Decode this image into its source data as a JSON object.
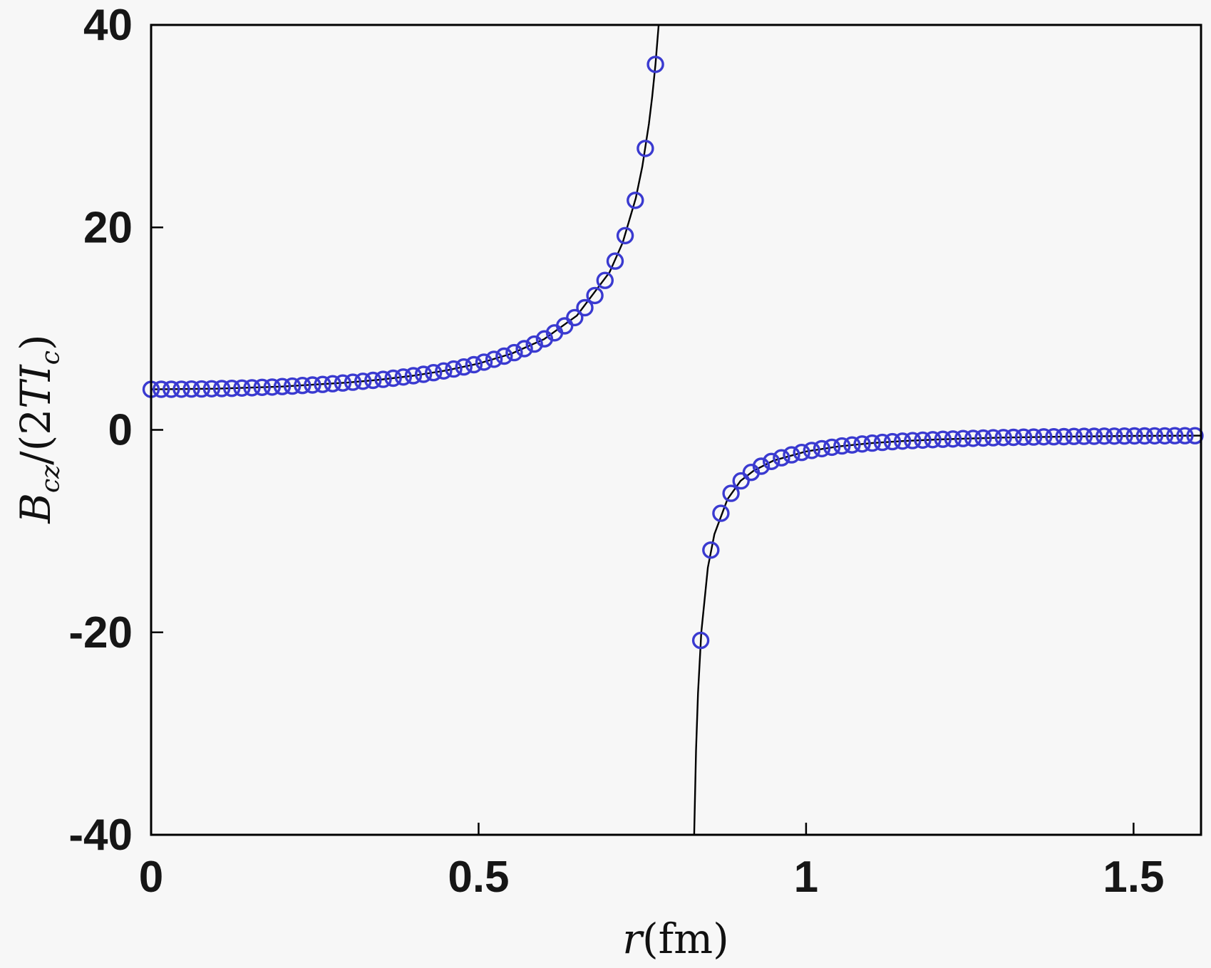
{
  "figure": {
    "background_color": "#f7f7f7",
    "frame_color": "#000000",
    "marker_color": "#3a3ad0",
    "line_color": "#000000"
  },
  "labels": {
    "ylabel": {
      "p0": "B",
      "p1": "cz",
      "p2": "/(2",
      "p3": "TI",
      "p4": "c",
      "p5": ")"
    },
    "xlabel": {
      "p0": "r",
      "p1": "(fm)"
    }
  },
  "chart_data": {
    "type": "scatter",
    "title": "",
    "xlabel": "r (fm)",
    "ylabel": "B_cz / (2 T I_c)",
    "xlim": [
      0,
      1.603
    ],
    "ylim": [
      -40,
      40
    ],
    "xticks": [
      0,
      0.5,
      1,
      1.5
    ],
    "xtick_labels": [
      "0",
      "0.5",
      "1",
      "1.5"
    ],
    "yticks": [
      -40,
      -20,
      0,
      20,
      40
    ],
    "ytick_labels": [
      "-40",
      "-20",
      "0",
      "20",
      "40"
    ],
    "grid": false,
    "legend": null,
    "description": "Scaled magnetic field B_cz/(2TI_c) versus radius r in fm; open blue circles (data) on a black model curve with a pole near r = 0.8 fm: the left branch rises from about 4 and diverges to +infinity, the right branch comes up from -infinity and approaches 0 from below.",
    "series": [
      {
        "name": "markers-left-branch",
        "kind": "scatter",
        "points": [
          [
            0.0,
            4.0
          ],
          [
            0.0154,
            4.01
          ],
          [
            0.0308,
            4.01
          ],
          [
            0.0462,
            4.02
          ],
          [
            0.0616,
            4.03
          ],
          [
            0.077,
            4.04
          ],
          [
            0.0924,
            4.06
          ],
          [
            0.1078,
            4.08
          ],
          [
            0.1232,
            4.1
          ],
          [
            0.1386,
            4.13
          ],
          [
            0.154,
            4.16
          ],
          [
            0.1694,
            4.2
          ],
          [
            0.1848,
            4.23
          ],
          [
            0.2002,
            4.28
          ],
          [
            0.2156,
            4.32
          ],
          [
            0.231,
            4.38
          ],
          [
            0.2464,
            4.43
          ],
          [
            0.2618,
            4.49
          ],
          [
            0.2772,
            4.56
          ],
          [
            0.2926,
            4.63
          ],
          [
            0.308,
            4.71
          ],
          [
            0.3234,
            4.8
          ],
          [
            0.3388,
            4.89
          ],
          [
            0.3542,
            4.99
          ],
          [
            0.3696,
            5.1
          ],
          [
            0.385,
            5.22
          ],
          [
            0.4004,
            5.35
          ],
          [
            0.4158,
            5.49
          ],
          [
            0.4312,
            5.65
          ],
          [
            0.4466,
            5.82
          ],
          [
            0.462,
            6.01
          ],
          [
            0.4774,
            6.21
          ],
          [
            0.4928,
            6.44
          ],
          [
            0.5082,
            6.69
          ],
          [
            0.5236,
            6.97
          ],
          [
            0.539,
            7.28
          ],
          [
            0.5544,
            7.63
          ],
          [
            0.5698,
            8.02
          ],
          [
            0.5852,
            8.47
          ],
          [
            0.6006,
            8.99
          ],
          [
            0.616,
            9.58
          ],
          [
            0.6314,
            10.27
          ],
          [
            0.6468,
            11.09
          ],
          [
            0.6622,
            12.07
          ],
          [
            0.6776,
            13.27
          ],
          [
            0.693,
            14.76
          ],
          [
            0.7084,
            16.67
          ],
          [
            0.7238,
            19.19
          ],
          [
            0.7392,
            22.67
          ],
          [
            0.7546,
            27.8
          ],
          [
            0.77,
            36.1
          ]
        ]
      },
      {
        "name": "markers-right-branch",
        "kind": "scatter",
        "points": [
          [
            0.8392,
            -20.8
          ],
          [
            0.8546,
            -11.88
          ],
          [
            0.87,
            -8.24
          ],
          [
            0.8854,
            -6.27
          ],
          [
            0.9008,
            -5.04
          ],
          [
            0.9162,
            -4.2
          ],
          [
            0.9316,
            -3.59
          ],
          [
            0.947,
            -3.12
          ],
          [
            0.9624,
            -2.76
          ],
          [
            0.9778,
            -2.47
          ],
          [
            0.9932,
            -2.23
          ],
          [
            1.0086,
            -2.03
          ],
          [
            1.024,
            -1.86
          ],
          [
            1.0394,
            -1.72
          ],
          [
            1.0548,
            -1.59
          ],
          [
            1.0702,
            -1.49
          ],
          [
            1.0856,
            -1.39
          ],
          [
            1.101,
            -1.31
          ],
          [
            1.1164,
            -1.24
          ],
          [
            1.1318,
            -1.17
          ],
          [
            1.1472,
            -1.11
          ],
          [
            1.1626,
            -1.06
          ],
          [
            1.178,
            -1.01
          ],
          [
            1.1934,
            -0.97
          ],
          [
            1.2088,
            -0.93
          ],
          [
            1.2242,
            -0.9
          ],
          [
            1.2396,
            -0.86
          ],
          [
            1.255,
            -0.84
          ],
          [
            1.2704,
            -0.81
          ],
          [
            1.2858,
            -0.78
          ],
          [
            1.3012,
            -0.76
          ],
          [
            1.3166,
            -0.74
          ],
          [
            1.332,
            -0.72
          ],
          [
            1.3474,
            -0.71
          ],
          [
            1.3628,
            -0.69
          ],
          [
            1.3782,
            -0.68
          ],
          [
            1.3936,
            -0.67
          ],
          [
            1.409,
            -0.65
          ],
          [
            1.4244,
            -0.64
          ],
          [
            1.4398,
            -0.63
          ],
          [
            1.4552,
            -0.62
          ],
          [
            1.4706,
            -0.62
          ],
          [
            1.486,
            -0.61
          ],
          [
            1.5014,
            -0.6
          ],
          [
            1.5168,
            -0.6
          ],
          [
            1.5322,
            -0.59
          ],
          [
            1.5476,
            -0.59
          ],
          [
            1.563,
            -0.58
          ],
          [
            1.5784,
            -0.58
          ],
          [
            1.5938,
            -0.58
          ]
        ]
      },
      {
        "name": "model-line-left-branch",
        "kind": "line",
        "points": [
          [
            0.0,
            4.0
          ],
          [
            0.1,
            4.07
          ],
          [
            0.2,
            4.28
          ],
          [
            0.3,
            4.67
          ],
          [
            0.35,
            4.96
          ],
          [
            0.4,
            5.35
          ],
          [
            0.45,
            5.86
          ],
          [
            0.5,
            6.55
          ],
          [
            0.55,
            7.52
          ],
          [
            0.6,
            8.96
          ],
          [
            0.65,
            11.28
          ],
          [
            0.7,
            15.57
          ],
          [
            0.72,
            18.49
          ],
          [
            0.74,
            22.89
          ],
          [
            0.75,
            26.03
          ],
          [
            0.76,
            30.23
          ],
          [
            0.765,
            32.9
          ],
          [
            0.77,
            36.1
          ],
          [
            0.775,
            40.0
          ]
        ]
      },
      {
        "name": "model-line-right-branch",
        "kind": "line",
        "points": [
          [
            0.8291,
            -40.0
          ],
          [
            0.832,
            -31.7
          ],
          [
            0.835,
            -26.0
          ],
          [
            0.84,
            -20.0
          ],
          [
            0.85,
            -13.6
          ],
          [
            0.86,
            -10.3
          ],
          [
            0.88,
            -6.85
          ],
          [
            0.9,
            -5.04
          ],
          [
            0.92,
            -4.03
          ],
          [
            0.95,
            -3.04
          ],
          [
            1.0,
            -2.13
          ],
          [
            1.05,
            -1.63
          ],
          [
            1.1,
            -1.31
          ],
          [
            1.15,
            -1.1
          ],
          [
            1.2,
            -0.95
          ],
          [
            1.3,
            -0.76
          ],
          [
            1.4,
            -0.66
          ],
          [
            1.5,
            -0.6
          ],
          [
            1.603,
            -0.57
          ]
        ]
      }
    ]
  }
}
